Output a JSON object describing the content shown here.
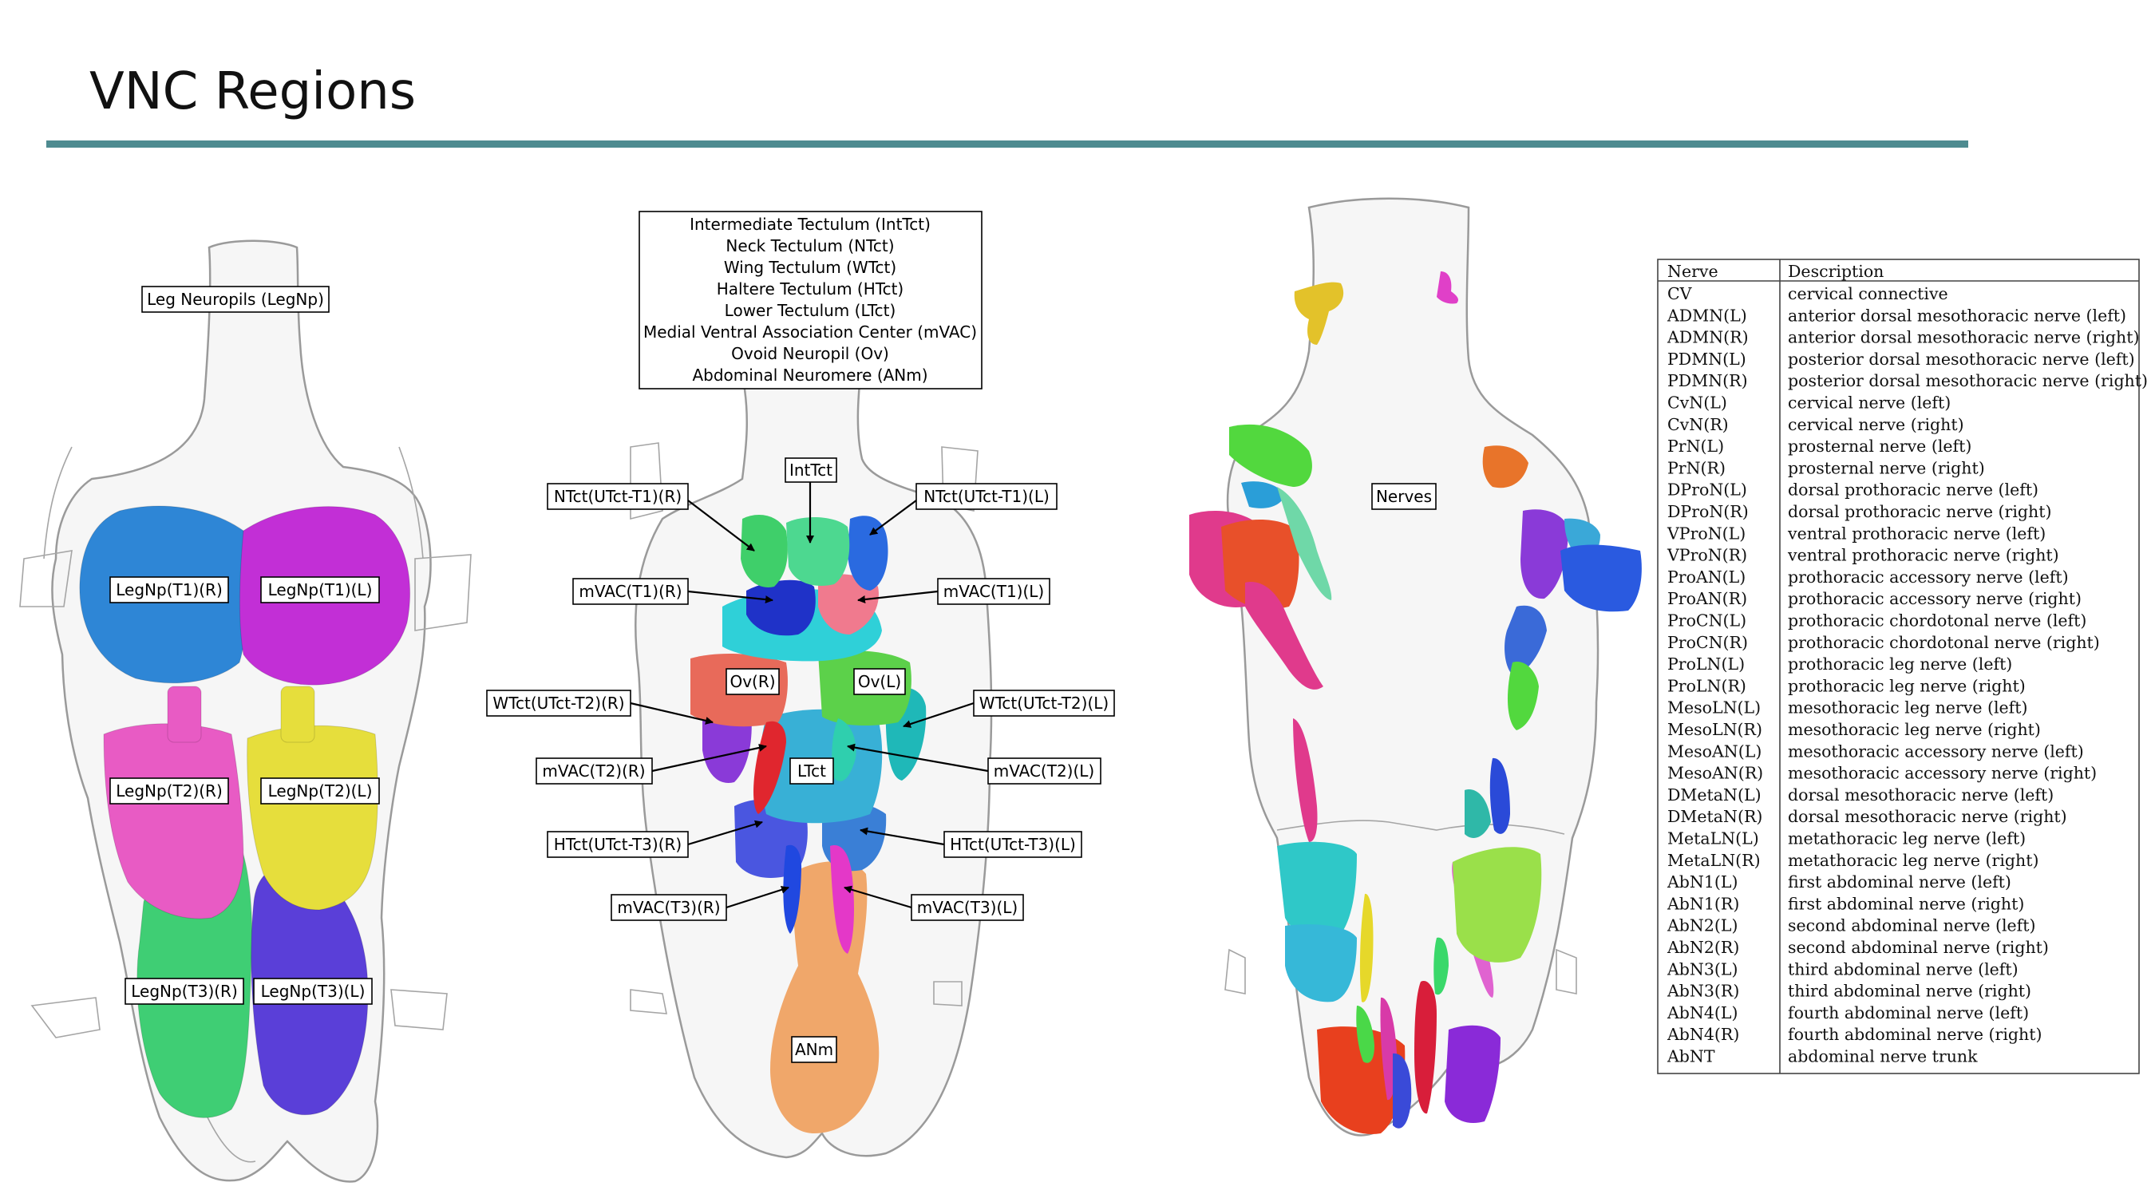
{
  "slide": {
    "title": "VNC Regions"
  },
  "panel_left": {
    "title_label": "Leg Neuropils (LegNp)",
    "labels": {
      "t1r": "LegNp(T1)(R)",
      "t1l": "LegNp(T1)(L)",
      "t2r": "LegNp(T2)(R)",
      "t2l": "LegNp(T2)(L)",
      "t3r": "LegNp(T3)(R)",
      "t3l": "LegNp(T3)(L)"
    },
    "colors": {
      "t1r": "#2e86d6",
      "t1l": "#c22fd6",
      "t2r": "#e85bc4",
      "t2l": "#e6de3c",
      "t3r": "#3fce74",
      "t3l": "#5a3fd8"
    }
  },
  "panel_middle": {
    "legend": [
      "Intermediate Tectulum (IntTct)",
      "Neck Tectulum (NTct)",
      "Wing Tectulum (WTct)",
      "Haltere Tectulum (HTct)",
      "Lower Tectulum (LTct)",
      "Medial Ventral Association Center (mVAC)",
      "Ovoid Neuropil (Ov)",
      "Abdominal Neuromere (ANm)"
    ],
    "labels": {
      "inttct": "IntTct",
      "ntct_r": "NTct(UTct-T1)(R)",
      "ntct_l": "NTct(UTct-T1)(L)",
      "mvac_t1_r": "mVAC(T1)(R)",
      "mvac_t1_l": "mVAC(T1)(L)",
      "ov_r": "Ov(R)",
      "ov_l": "Ov(L)",
      "wtct_r": "WTct(UTct-T2)(R)",
      "wtct_l": "WTct(UTct-T2)(L)",
      "mvac_t2_r": "mVAC(T2)(R)",
      "mvac_t2_l": "mVAC(T2)(L)",
      "ltct": "LTct",
      "htct_r": "HTct(UTct-T3)(R)",
      "htct_l": "HTct(UTct-T3)(L)",
      "mvac_t3_r": "mVAC(T3)(R)",
      "mvac_t3_l": "mVAC(T3)(L)",
      "anm": "ANm"
    }
  },
  "panel_right": {
    "label": "Nerves"
  },
  "nerve_table": {
    "headers": [
      "Nerve",
      "Description"
    ],
    "rows": [
      [
        "CV",
        "cervical connective"
      ],
      [
        "ADMN(L)",
        "anterior dorsal mesothoracic nerve (left)"
      ],
      [
        "ADMN(R)",
        "anterior dorsal mesothoracic nerve (right)"
      ],
      [
        "PDMN(L)",
        "posterior dorsal mesothoracic nerve (left)"
      ],
      [
        "PDMN(R)",
        "posterior dorsal mesothoracic nerve (right)"
      ],
      [
        "CvN(L)",
        "cervical nerve (left)"
      ],
      [
        "CvN(R)",
        "cervical nerve (right)"
      ],
      [
        "PrN(L)",
        "prosternal nerve (left)"
      ],
      [
        "PrN(R)",
        "prosternal nerve (right)"
      ],
      [
        "DProN(L)",
        "dorsal prothoracic nerve (left)"
      ],
      [
        "DProN(R)",
        "dorsal prothoracic nerve (right)"
      ],
      [
        "VProN(L)",
        "ventral prothoracic nerve (left)"
      ],
      [
        "VProN(R)",
        "ventral prothoracic nerve (right)"
      ],
      [
        "ProAN(L)",
        "prothoracic accessory nerve (left)"
      ],
      [
        "ProAN(R)",
        "prothoracic accessory nerve (right)"
      ],
      [
        "ProCN(L)",
        "prothoracic chordotonal nerve (left)"
      ],
      [
        "ProCN(R)",
        "prothoracic chordotonal nerve (right)"
      ],
      [
        "ProLN(L)",
        "prothoracic leg nerve (left)"
      ],
      [
        "ProLN(R)",
        "prothoracic leg nerve (right)"
      ],
      [
        "MesoLN(L)",
        "mesothoracic leg nerve (left)"
      ],
      [
        "MesoLN(R)",
        "mesothoracic leg nerve (right)"
      ],
      [
        "MesoAN(L)",
        "mesothoracic accessory nerve (left)"
      ],
      [
        "MesoAN(R)",
        "mesothoracic accessory nerve (right)"
      ],
      [
        "DMetaN(L)",
        "dorsal mesothoracic nerve (left)"
      ],
      [
        "DMetaN(R)",
        "dorsal mesothoracic nerve (right)"
      ],
      [
        "MetaLN(L)",
        "metathoracic leg nerve (left)"
      ],
      [
        "MetaLN(R)",
        "metathoracic leg nerve (right)"
      ],
      [
        "AbN1(L)",
        "first abdominal nerve (left)"
      ],
      [
        "AbN1(R)",
        "first abdominal nerve (right)"
      ],
      [
        "AbN2(L)",
        "second abdominal nerve (left)"
      ],
      [
        "AbN2(R)",
        "second abdominal nerve (right)"
      ],
      [
        "AbN3(L)",
        "third abdominal nerve (left)"
      ],
      [
        "AbN3(R)",
        "third abdominal nerve (right)"
      ],
      [
        "AbN4(L)",
        "fourth abdominal nerve (left)"
      ],
      [
        "AbN4(R)",
        "fourth abdominal nerve (right)"
      ],
      [
        "AbNT",
        "abdominal nerve trunk"
      ]
    ]
  }
}
